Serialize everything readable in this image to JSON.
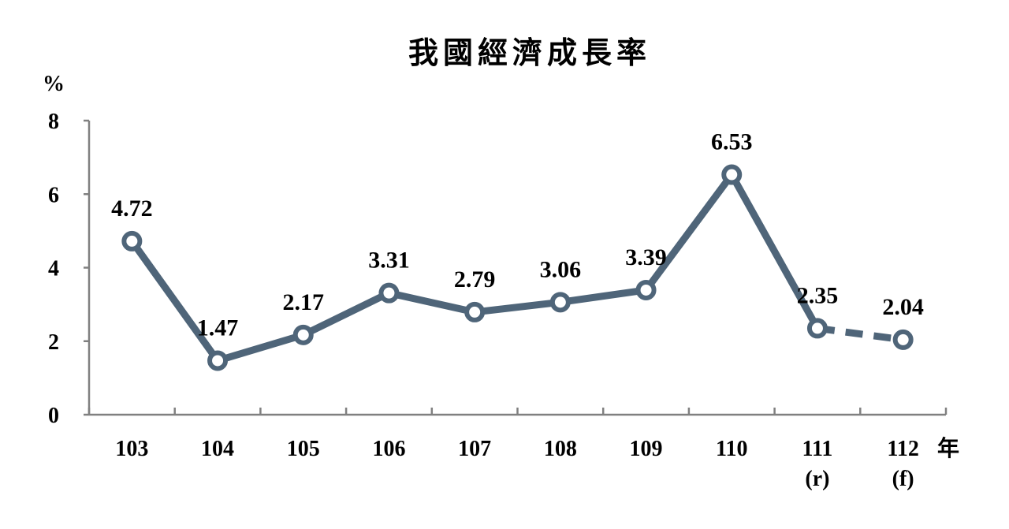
{
  "colors": {
    "line": "#4f6579",
    "axis": "#808080",
    "marker_fill": "#ffffff",
    "text": "#000000"
  },
  "chart_data": {
    "type": "line",
    "title": "我國經濟成長率",
    "ylabel": "%",
    "xlabel": "年",
    "ylim": [
      0,
      8
    ],
    "yticks": [
      0,
      2,
      4,
      6,
      8
    ],
    "grid": false,
    "legend": "none",
    "categories": [
      "103",
      "104",
      "105",
      "106",
      "107",
      "108",
      "109",
      "110",
      "111",
      "112"
    ],
    "category_notes": [
      "",
      "",
      "",
      "",
      "",
      "",
      "",
      "",
      "(r)",
      "(f)"
    ],
    "series": [
      {
        "values": [
          4.72,
          1.47,
          2.17,
          3.31,
          2.79,
          3.06,
          3.39,
          6.53,
          2.35,
          2.04
        ],
        "data_labels": [
          "4.72",
          "1.47",
          "2.17",
          "3.31",
          "2.79",
          "3.06",
          "3.39",
          "6.53",
          "2.35",
          "2.04"
        ],
        "dashed_from_index": 8
      }
    ]
  }
}
